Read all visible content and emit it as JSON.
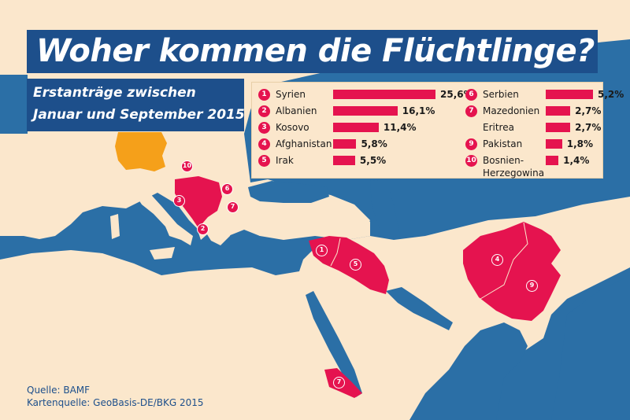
{
  "title": "Woher kommen die Flüchtlinge?",
  "subtitle": [
    "Erstanträge zwischen",
    "Januar und September 2015"
  ],
  "colors": {
    "sea": "#2b6fa6",
    "land": "#fbe7cc",
    "highlight": "#e5134f",
    "germany": "#f5a01a",
    "banner": "#1d4f8b"
  },
  "legend": {
    "left": [
      {
        "rank": "1",
        "name": "Syrien",
        "percent": "25,6%",
        "value": 25.6
      },
      {
        "rank": "2",
        "name": "Albanien",
        "percent": "16,1%",
        "value": 16.1
      },
      {
        "rank": "3",
        "name": "Kosovo",
        "percent": "11,4%",
        "value": 11.4
      },
      {
        "rank": "4",
        "name": "Afghanistan",
        "percent": "5,8%",
        "value": 5.8
      },
      {
        "rank": "5",
        "name": "Irak",
        "percent": "5,5%",
        "value": 5.5
      }
    ],
    "right": [
      {
        "rank": "6",
        "name": "Serbien",
        "percent": "5,2%",
        "value": 5.2
      },
      {
        "rank": "7",
        "name": "Mazedonien",
        "percent": "2,7%",
        "value": 2.7
      },
      {
        "rank": "",
        "name": "Eritrea",
        "percent": "2,7%",
        "value": 2.7
      },
      {
        "rank": "9",
        "name": "Pakistan",
        "percent": "1,8%",
        "value": 1.8
      },
      {
        "rank": "10",
        "name": "Bosnien-\nHerzegowina",
        "percent": "1,4%",
        "value": 1.4
      }
    ]
  },
  "map_markers": [
    "1",
    "2",
    "3",
    "4",
    "5",
    "6",
    "7",
    "7",
    "9",
    "10"
  ],
  "source": [
    "Quelle: BAMF",
    "Kartenquelle: GeoBasis-DE/BKG 2015"
  ]
}
